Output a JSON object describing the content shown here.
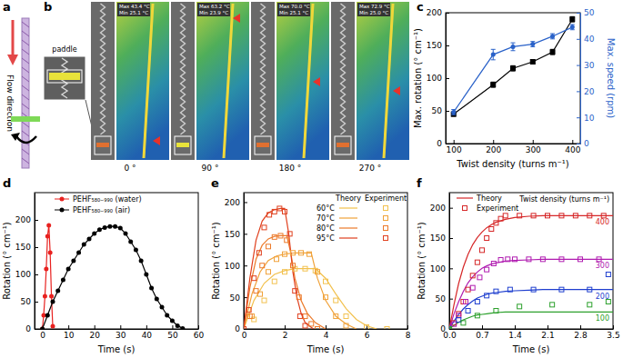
{
  "panels": {
    "a": {
      "label": "a",
      "flow_label": "Flow direction"
    },
    "b": {
      "label": "b",
      "inset_label": "paddle",
      "frames": [
        {
          "angle": "0 °",
          "max": "Max 43.4 °C",
          "min": "Min 25.1 °C"
        },
        {
          "angle": "90 °",
          "max": "Max 63.2 °C",
          "min": "Min 23.9 °C"
        },
        {
          "angle": "180 °",
          "max": "Max 70.0 °C",
          "min": "Min 25.1 °C"
        },
        {
          "angle": "270 °",
          "max": "Max 72.9 °C",
          "min": "Min 25.0 °C"
        }
      ]
    }
  },
  "chart_data": [
    {
      "panel": "c",
      "type": "line",
      "x": [
        100,
        200,
        250,
        300,
        350,
        400
      ],
      "xlim": [
        80,
        420
      ],
      "xticks": [
        100,
        200,
        300,
        400
      ],
      "ylim": [
        0,
        200
      ],
      "yticks": [
        0,
        50,
        100,
        150,
        200
      ],
      "y2lim": [
        0,
        50
      ],
      "y2ticks": [
        0,
        10,
        20,
        30,
        40,
        50
      ],
      "x_label": "Twist density (turns m⁻¹)",
      "y_label": "Max. rotation (° cm⁻¹)",
      "y2_label": "Max. speed (rpm)",
      "series": [
        {
          "color": "#000000",
          "marker": "square",
          "values": [
            45,
            90,
            115,
            125,
            140,
            190
          ],
          "errors": [
            3,
            4,
            4,
            3,
            4,
            4
          ]
        },
        {
          "axis": "y2",
          "color": "#2a62c9",
          "marker": "circle",
          "values": [
            12,
            34,
            37,
            38,
            41,
            44.5
          ],
          "errors": [
            1,
            2,
            1.5,
            1,
            1,
            1
          ]
        }
      ]
    },
    {
      "panel": "d",
      "type": "line",
      "xlim": [
        -3,
        60
      ],
      "xticks": [
        0,
        10,
        20,
        30,
        40,
        50,
        60
      ],
      "ylim": [
        0,
        250
      ],
      "yticks": [
        0,
        50,
        100,
        150,
        200
      ],
      "x_label": "Time (s)",
      "y_label": "Rotation (° cm⁻¹)",
      "legend": "upper left",
      "series": [
        {
          "name": "PEHF₅₈₀₋₉₉₀ (water)",
          "color": "#e8211f",
          "marker": "circle",
          "x": [
            0,
            0.5,
            1,
            1.5,
            2,
            2.5,
            3,
            3.5,
            4
          ],
          "values": [
            0,
            25,
            60,
            110,
            170,
            190,
            140,
            60,
            5
          ]
        },
        {
          "name": "PEHF₅₈₀₋₉₉₀ (air)",
          "color": "#000000",
          "marker": "circle",
          "x": [
            0,
            2,
            4,
            6,
            8,
            10,
            12,
            14,
            16,
            18,
            20,
            22,
            24,
            26,
            28,
            30,
            32,
            34,
            36,
            38,
            40,
            42,
            44,
            46,
            48,
            50,
            52,
            54
          ],
          "values": [
            0,
            25,
            50,
            70,
            90,
            110,
            125,
            140,
            155,
            165,
            175,
            182,
            186,
            188,
            188,
            185,
            175,
            160,
            145,
            125,
            100,
            75,
            55,
            40,
            25,
            15,
            6,
            1
          ]
        }
      ]
    },
    {
      "panel": "e",
      "type": "line",
      "xlim": [
        0,
        8
      ],
      "xticks": [
        0,
        2,
        4,
        6,
        8
      ],
      "ylim": [
        0,
        215
      ],
      "yticks": [
        0,
        50,
        100,
        150,
        200
      ],
      "x_label": "Time (s)",
      "y_label": "Rotation (° cm⁻¹)",
      "legend": "upper right",
      "legend_labels": [
        "Theory",
        "Experiment"
      ],
      "series": [
        {
          "name": "60°C",
          "type": "line",
          "color": "#f2c14e",
          "x": [
            0,
            0.5,
            1,
            1.5,
            2,
            2.5,
            3,
            3.5,
            4,
            4.5,
            5,
            5.5,
            6,
            6.5
          ],
          "values": [
            0,
            45,
            72,
            86,
            92,
            95,
            95,
            95,
            80,
            55,
            32,
            15,
            5,
            0
          ]
        },
        {
          "name": "70°C",
          "type": "line",
          "color": "#f0a23a",
          "x": [
            0,
            0.4,
            0.8,
            1.2,
            1.6,
            2,
            2.5,
            3,
            3.3,
            3.6,
            4,
            4.5,
            5,
            5.5
          ],
          "values": [
            0,
            55,
            90,
            108,
            115,
            118,
            120,
            120,
            120,
            80,
            45,
            20,
            8,
            0
          ]
        },
        {
          "name": "80°C",
          "type": "line",
          "color": "#ec7a2a",
          "x": [
            0,
            0.3,
            0.6,
            0.9,
            1.2,
            1.5,
            1.8,
            2.1,
            2.3,
            2.5,
            2.8,
            3.1,
            3.5,
            4
          ],
          "values": [
            0,
            65,
            110,
            132,
            142,
            146,
            147,
            147,
            120,
            80,
            45,
            25,
            10,
            0
          ]
        },
        {
          "name": "95°C",
          "type": "line",
          "color": "#e0401e",
          "x": [
            0,
            0.3,
            0.6,
            0.9,
            1.2,
            1.5,
            1.8,
            2,
            2.2,
            2.4,
            2.6,
            2.8,
            3,
            3.4
          ],
          "values": [
            0,
            80,
            140,
            170,
            183,
            188,
            190,
            190,
            150,
            90,
            50,
            25,
            10,
            0
          ]
        },
        {
          "type": "scatter",
          "marker": "open-square",
          "color": "#f2c14e",
          "x": [
            0,
            0.5,
            1,
            1.5,
            2,
            2.5,
            3,
            3.5,
            4,
            4.5,
            5,
            6,
            7
          ],
          "values": [
            0,
            15,
            45,
            75,
            90,
            95,
            95,
            92,
            75,
            45,
            20,
            3,
            0
          ]
        },
        {
          "type": "scatter",
          "marker": "open-square",
          "color": "#f0a23a",
          "x": [
            0,
            0.4,
            0.8,
            1.2,
            1.6,
            2,
            2.4,
            2.8,
            3.2,
            3.6,
            4,
            4.5,
            5
          ],
          "values": [
            0,
            20,
            55,
            90,
            110,
            118,
            120,
            120,
            118,
            90,
            50,
            20,
            5
          ]
        },
        {
          "type": "scatter",
          "marker": "open-square",
          "color": "#ec7a2a",
          "x": [
            0,
            0.3,
            0.6,
            0.9,
            1.2,
            1.5,
            1.8,
            2.1,
            2.4,
            2.7,
            3,
            3.3,
            3.6
          ],
          "values": [
            0,
            20,
            60,
            100,
            130,
            145,
            147,
            140,
            100,
            50,
            20,
            8,
            0
          ]
        },
        {
          "type": "scatter",
          "marker": "open-square",
          "color": "#e0401e",
          "x": [
            0,
            0.25,
            0.5,
            0.75,
            1,
            1.25,
            1.5,
            1.75,
            2,
            2.25,
            2.5,
            2.75,
            3
          ],
          "values": [
            0,
            30,
            80,
            120,
            160,
            180,
            185,
            190,
            185,
            150,
            60,
            20,
            5
          ]
        }
      ]
    },
    {
      "panel": "f",
      "type": "line",
      "xlim": [
        0,
        3.5
      ],
      "xticks": [
        {
          "value": 0,
          "label": "0.0"
        },
        0.7,
        1.4,
        2.1,
        2.8,
        3.5
      ],
      "ylim": [
        0,
        225
      ],
      "yticks": [
        0,
        50,
        100,
        150,
        200
      ],
      "x_label": "Time (s)",
      "y_label": "Rotation (° cm⁻¹)",
      "legend": "upper left",
      "legend_labels": [
        "Theory",
        "Experiment"
      ],
      "legend_title": "Twist density (turns m⁻¹)",
      "series": [
        {
          "name": "400",
          "type": "line",
          "color": "#d62728",
          "x": [
            0,
            0.1,
            0.2,
            0.3,
            0.4,
            0.5,
            0.6,
            0.7,
            0.8,
            0.9,
            1,
            1.2,
            1.4,
            1.7,
            2,
            2.5,
            3,
            3.5
          ],
          "values": [
            0,
            40,
            75,
            102,
            123,
            139,
            151,
            160,
            167,
            172,
            176,
            181,
            184,
            186,
            187,
            187,
            187,
            187
          ]
        },
        {
          "name": "300",
          "type": "line",
          "color": "#b01bb0",
          "x": [
            0,
            0.1,
            0.2,
            0.3,
            0.4,
            0.5,
            0.6,
            0.7,
            0.8,
            0.9,
            1,
            1.2,
            1.4,
            1.7,
            2,
            2.5,
            3,
            3.5
          ],
          "values": [
            0,
            25,
            45,
            62,
            76,
            86,
            94,
            100,
            104,
            107,
            109,
            112,
            113,
            114,
            115,
            115,
            115,
            115
          ]
        },
        {
          "name": "200",
          "type": "line",
          "color": "#1f3fcf",
          "x": [
            0,
            0.1,
            0.2,
            0.3,
            0.4,
            0.5,
            0.6,
            0.7,
            0.8,
            0.9,
            1,
            1.2,
            1.4,
            1.7,
            2,
            2.5,
            3,
            3.5
          ],
          "values": [
            0,
            13,
            24,
            33,
            40,
            46,
            51,
            54,
            57,
            59,
            60,
            62,
            63,
            64,
            65,
            65,
            65,
            65
          ]
        },
        {
          "name": "100",
          "type": "line",
          "color": "#2ca02c",
          "x": [
            0,
            0.1,
            0.2,
            0.3,
            0.4,
            0.5,
            0.6,
            0.7,
            0.8,
            0.9,
            1,
            1.2,
            1.4,
            1.7,
            2,
            2.5,
            3,
            3.5
          ],
          "values": [
            0,
            6,
            11,
            15,
            18,
            21,
            23,
            24,
            25,
            26,
            27,
            28,
            28,
            28,
            28,
            28,
            28,
            28
          ]
        },
        {
          "type": "scatter",
          "marker": "open-square",
          "color": "#d62728",
          "x": [
            0,
            0.1,
            0.2,
            0.3,
            0.4,
            0.5,
            0.6,
            0.7,
            0.8,
            0.9,
            1,
            1.1,
            1.2,
            1.5,
            1.8,
            2.1,
            2.4,
            2.7,
            3,
            3.3
          ],
          "values": [
            0,
            10,
            25,
            45,
            65,
            88,
            110,
            130,
            150,
            165,
            175,
            182,
            187,
            187,
            187,
            187,
            187,
            187,
            187,
            187
          ]
        },
        {
          "type": "scatter",
          "marker": "open-square",
          "color": "#b01bb0",
          "x": [
            0,
            0.1,
            0.2,
            0.35,
            0.5,
            0.65,
            0.8,
            0.95,
            1.1,
            1.25,
            1.4,
            1.7,
            2,
            2.4,
            2.8,
            3.2
          ],
          "values": [
            0,
            8,
            22,
            45,
            68,
            85,
            98,
            108,
            114,
            115,
            115,
            115,
            115,
            115,
            115,
            115
          ]
        },
        {
          "type": "scatter",
          "marker": "open-square",
          "color": "#1f3fcf",
          "x": [
            0,
            0.2,
            0.4,
            0.6,
            0.8,
            1,
            1.3,
            1.8,
            2.4,
            3,
            3.4
          ],
          "values": [
            0,
            15,
            30,
            45,
            55,
            62,
            65,
            65,
            65,
            65,
            90
          ]
        },
        {
          "type": "scatter",
          "marker": "open-square",
          "color": "#2ca02c",
          "x": [
            0,
            0.3,
            0.6,
            1,
            1.5,
            2.2,
            3,
            3.4
          ],
          "values": [
            0,
            10,
            22,
            30,
            37,
            40,
            40,
            45
          ]
        }
      ]
    }
  ]
}
